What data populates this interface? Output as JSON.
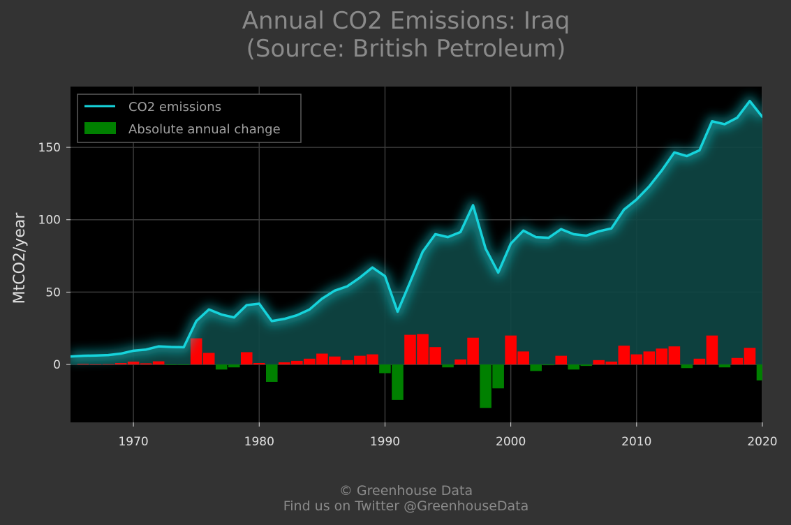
{
  "title": {
    "line1": "Annual CO2 Emissions: Iraq",
    "line2": "(Source: British Petroleum)"
  },
  "footer": {
    "line1": "© Greenhouse Data",
    "line2": "Find us on Twitter @GreenhouseData"
  },
  "colors": {
    "background": "#333333",
    "plot_background": "#000000",
    "line": "#16d3db",
    "area_fill": "#0e4745",
    "positive_change": "#ff0000",
    "negative_change": "#008000",
    "text": "#e0e0e0",
    "title_text": "#8a8a8a"
  },
  "chart_data": {
    "type": "line",
    "title": "Annual CO2 Emissions: Iraq",
    "subtitle": "(Source: British Petroleum)",
    "xlabel": "",
    "ylabel": "MtCO2/year",
    "xlim": [
      1965,
      2020
    ],
    "ylim": [
      -40,
      192
    ],
    "grid": true,
    "legend_position": "top-left",
    "x_ticks": [
      1970,
      1980,
      1990,
      2000,
      2010,
      2020
    ],
    "y_ticks": [
      0,
      50,
      100,
      150
    ],
    "x": [
      1965,
      1966,
      1967,
      1968,
      1969,
      1970,
      1971,
      1972,
      1973,
      1974,
      1975,
      1976,
      1977,
      1978,
      1979,
      1980,
      1981,
      1982,
      1983,
      1984,
      1985,
      1986,
      1987,
      1988,
      1989,
      1990,
      1991,
      1992,
      1993,
      1994,
      1995,
      1996,
      1997,
      1998,
      1999,
      2000,
      2001,
      2002,
      2003,
      2004,
      2005,
      2006,
      2007,
      2008,
      2009,
      2010,
      2011,
      2012,
      2013,
      2014,
      2015,
      2016,
      2017,
      2018,
      2019,
      2020
    ],
    "series": [
      {
        "name": "CO2 emissions",
        "values": [
          5.5,
          6,
          6.2,
          6.5,
          7.5,
          9.5,
          10.3,
          12.5,
          12.1,
          11.9,
          30,
          38,
          34.5,
          32.5,
          41,
          42,
          30,
          31.5,
          34,
          38,
          45.5,
          51,
          54,
          60,
          67,
          61,
          36.5,
          57,
          78,
          90,
          88,
          91.5,
          110,
          80,
          63.5,
          83.5,
          92.5,
          88,
          87.5,
          93.5,
          90,
          89,
          92,
          94,
          107,
          114,
          123,
          134,
          146.5,
          144,
          148,
          168,
          166,
          170.5,
          182,
          171
        ]
      },
      {
        "name": "Absolute annual change",
        "values": [
          null,
          0.5,
          0.2,
          0.3,
          1,
          2,
          0.8,
          2.2,
          -0.4,
          -0.2,
          18.1,
          8,
          -3.5,
          -2,
          8.5,
          1,
          -12,
          1.5,
          2.5,
          4,
          7.5,
          5.5,
          3,
          6,
          7,
          -6,
          -24.5,
          20.5,
          21,
          12,
          -2,
          3.5,
          18.5,
          -30,
          -16.5,
          20,
          9,
          -4.5,
          -0.5,
          6,
          -3.5,
          -1,
          3,
          2,
          13,
          7,
          9,
          11,
          12.5,
          -2.5,
          4,
          20,
          -2,
          4.5,
          11.5,
          -11
        ]
      }
    ],
    "legend": [
      "CO2 emissions",
      "Absolute annual change"
    ]
  }
}
